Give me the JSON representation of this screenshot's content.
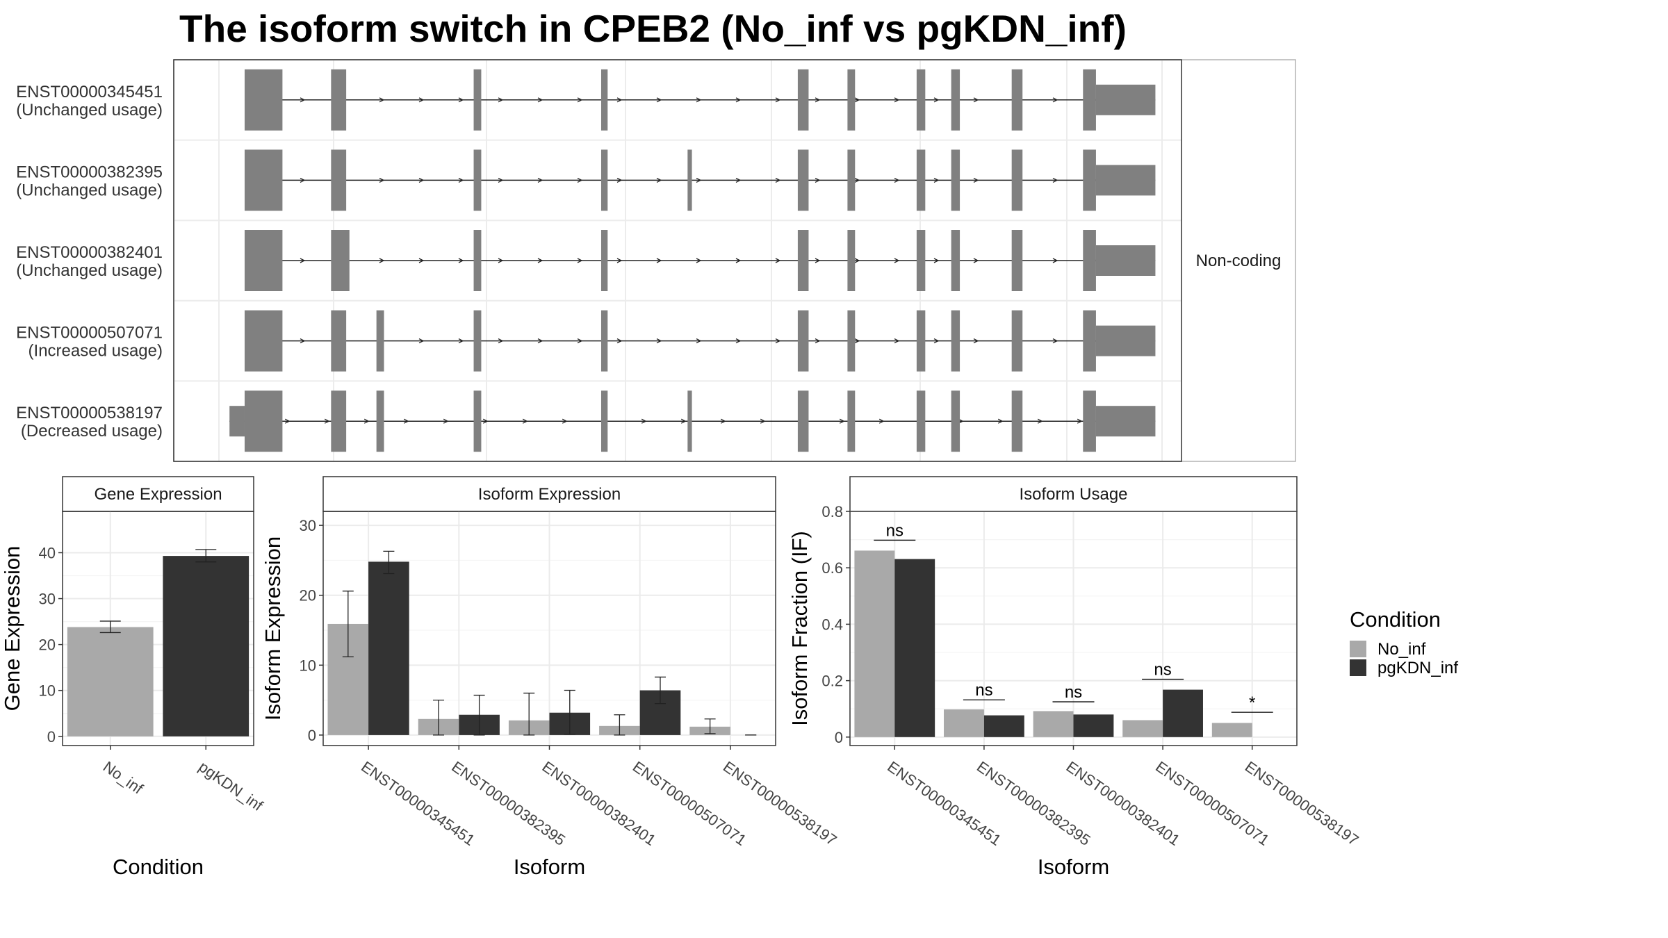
{
  "title": "The isoform switch in CPEB2 (No_inf vs pgKDN_inf)",
  "colors": {
    "No_inf": "#a9a9a9",
    "pgKDN_inf": "#333333",
    "exon": "#808080"
  },
  "chart_data": [
    {
      "type": "gene-structure",
      "facet_label": "Non-coding",
      "transcripts": [
        {
          "id": "ENST00000345451",
          "usage": "(Unchanged usage)",
          "exons": [
            [
              220,
              255,
              "tall"
            ],
            [
              300,
              314,
              "tall"
            ],
            [
              432,
              439,
              "tall"
            ],
            [
              550,
              556,
              "tall"
            ],
            [
              732,
              742,
              "tall"
            ],
            [
              778,
              785,
              "tall"
            ],
            [
              842,
              850,
              "tall"
            ],
            [
              874,
              882,
              "tall"
            ],
            [
              930,
              940,
              "tall"
            ],
            [
              996,
              1008,
              "tall"
            ],
            [
              1008,
              1063,
              "short"
            ]
          ]
        },
        {
          "id": "ENST00000382395",
          "usage": "(Unchanged usage)",
          "exons": [
            [
              220,
              255,
              "tall"
            ],
            [
              300,
              314,
              "tall"
            ],
            [
              432,
              439,
              "tall"
            ],
            [
              550,
              556,
              "tall"
            ],
            [
              630,
              634,
              "tall"
            ],
            [
              732,
              742,
              "tall"
            ],
            [
              778,
              785,
              "tall"
            ],
            [
              842,
              850,
              "tall"
            ],
            [
              874,
              882,
              "tall"
            ],
            [
              930,
              940,
              "tall"
            ],
            [
              996,
              1008,
              "tall"
            ],
            [
              1008,
              1063,
              "short"
            ]
          ]
        },
        {
          "id": "ENST00000382401",
          "usage": "(Unchanged usage)",
          "exons": [
            [
              220,
              255,
              "tall"
            ],
            [
              300,
              317,
              "tall"
            ],
            [
              432,
              439,
              "tall"
            ],
            [
              550,
              556,
              "tall"
            ],
            [
              732,
              742,
              "tall"
            ],
            [
              778,
              785,
              "tall"
            ],
            [
              842,
              850,
              "tall"
            ],
            [
              874,
              882,
              "tall"
            ],
            [
              930,
              940,
              "tall"
            ],
            [
              996,
              1008,
              "tall"
            ],
            [
              1008,
              1063,
              "short"
            ]
          ]
        },
        {
          "id": "ENST00000507071",
          "usage": "(Increased usage)",
          "exons": [
            [
              220,
              255,
              "tall"
            ],
            [
              300,
              314,
              "tall"
            ],
            [
              342,
              349,
              "tall"
            ],
            [
              432,
              439,
              "tall"
            ],
            [
              550,
              556,
              "tall"
            ],
            [
              732,
              742,
              "tall"
            ],
            [
              778,
              785,
              "tall"
            ],
            [
              842,
              850,
              "tall"
            ],
            [
              874,
              882,
              "tall"
            ],
            [
              930,
              940,
              "tall"
            ],
            [
              996,
              1008,
              "tall"
            ],
            [
              1008,
              1063,
              "short"
            ]
          ]
        },
        {
          "id": "ENST00000538197",
          "usage": "(Decreased usage)",
          "exons": [
            [
              206,
              220,
              "short"
            ],
            [
              220,
              255,
              "tall"
            ],
            [
              300,
              314,
              "tall"
            ],
            [
              342,
              349,
              "tall"
            ],
            [
              432,
              439,
              "tall"
            ],
            [
              550,
              556,
              "tall"
            ],
            [
              630,
              634,
              "tall"
            ],
            [
              732,
              742,
              "tall"
            ],
            [
              778,
              785,
              "tall"
            ],
            [
              842,
              850,
              "tall"
            ],
            [
              874,
              882,
              "tall"
            ],
            [
              930,
              940,
              "tall"
            ],
            [
              996,
              1008,
              "tall"
            ],
            [
              1008,
              1063,
              "short"
            ]
          ]
        }
      ]
    },
    {
      "type": "bar",
      "strip": "Gene Expression",
      "xlabel": "Condition",
      "ylabel": "Gene Expression",
      "ylim": [
        -2,
        49
      ],
      "yticks": [
        0,
        10,
        20,
        30,
        40
      ],
      "categories": [
        "No_inf",
        "pgKDN_inf"
      ],
      "values": [
        23.8,
        39.3
      ],
      "errors": [
        [
          22.6,
          25.1
        ],
        [
          38.0,
          40.7
        ]
      ]
    },
    {
      "type": "bar",
      "strip": "Isoform Expression",
      "xlabel": "Isoform",
      "ylabel": "Isoform Expression",
      "ylim": [
        -1.5,
        32
      ],
      "yticks": [
        0,
        10,
        20,
        30
      ],
      "categories": [
        "ENST00000345451",
        "ENST00000382395",
        "ENST00000382401",
        "ENST00000507071",
        "ENST00000538197"
      ],
      "series": [
        {
          "name": "No_inf",
          "values": [
            15.9,
            2.3,
            2.1,
            1.3,
            1.2
          ],
          "errors": [
            [
              11.2,
              20.6
            ],
            [
              0,
              5.0
            ],
            [
              0,
              6.0
            ],
            [
              0,
              2.9
            ],
            [
              0.2,
              2.3
            ]
          ]
        },
        {
          "name": "pgKDN_inf",
          "values": [
            24.8,
            2.9,
            3.2,
            6.4,
            0
          ],
          "errors": [
            [
              23.1,
              26.3
            ],
            [
              0,
              5.7
            ],
            [
              0.1,
              6.4
            ],
            [
              4.5,
              8.3
            ],
            [
              0,
              0
            ]
          ]
        }
      ]
    },
    {
      "type": "bar",
      "strip": "Isoform Usage",
      "xlabel": "Isoform",
      "ylabel": "Isoform Fraction (IF)",
      "ylim": [
        -0.03,
        0.8
      ],
      "yticks": [
        0.0,
        0.2,
        0.4,
        0.6,
        0.8
      ],
      "categories": [
        "ENST00000345451",
        "ENST00000382395",
        "ENST00000382401",
        "ENST00000507071",
        "ENST00000538197"
      ],
      "series": [
        {
          "name": "No_inf",
          "values": [
            0.661,
            0.098,
            0.092,
            0.06,
            0.05
          ]
        },
        {
          "name": "pgKDN_inf",
          "values": [
            0.631,
            0.077,
            0.08,
            0.168,
            0.0
          ]
        }
      ],
      "significance": [
        "ns",
        "ns",
        "ns",
        "ns",
        "*"
      ],
      "sig_y": [
        0.698,
        0.132,
        0.125,
        0.205,
        0.088
      ]
    }
  ],
  "legend": {
    "title": "Condition",
    "items": [
      {
        "label": "No_inf",
        "color": "#a9a9a9"
      },
      {
        "label": "pgKDN_inf",
        "color": "#333333"
      }
    ]
  }
}
